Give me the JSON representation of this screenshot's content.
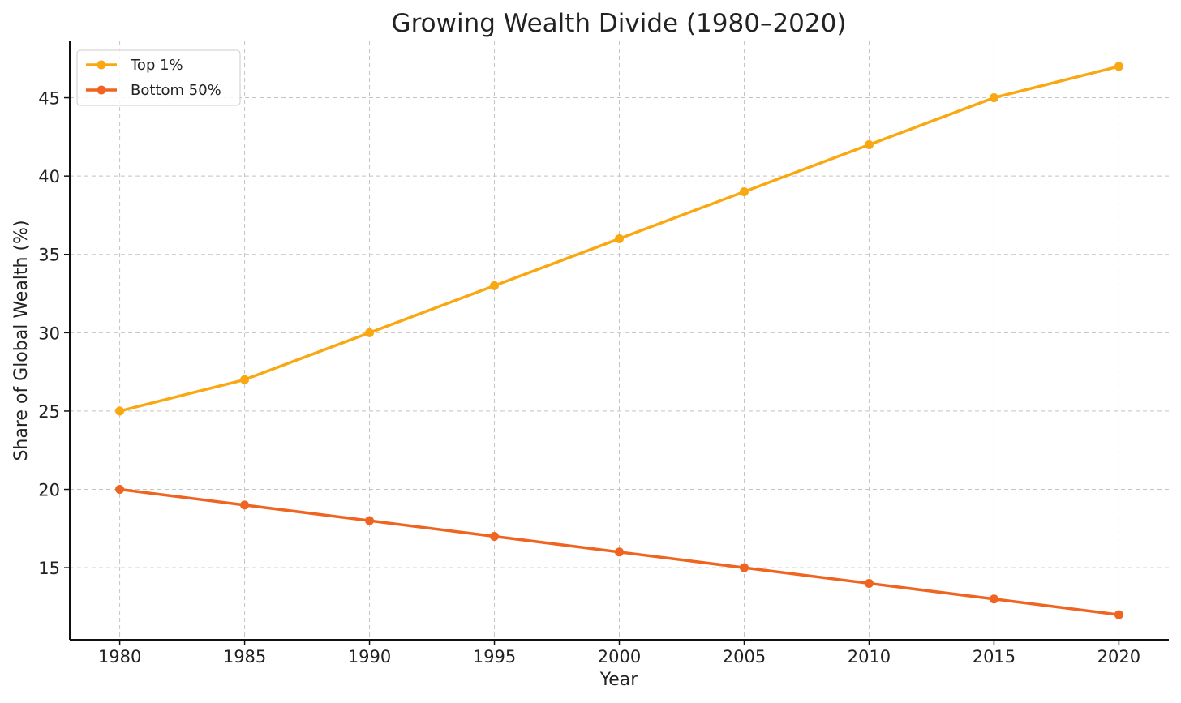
{
  "chart_data": {
    "type": "line",
    "title": "Growing Wealth Divide (1980–2020)",
    "xlabel": "Year",
    "ylabel": "Share of Global Wealth (%)",
    "x": [
      1980,
      1985,
      1990,
      1995,
      2000,
      2005,
      2010,
      2015,
      2020
    ],
    "xlim": [
      1978,
      2022
    ],
    "ylim": [
      10.4,
      48.6
    ],
    "xticks": [
      1980,
      1985,
      1990,
      1995,
      2000,
      2005,
      2010,
      2015,
      2020
    ],
    "yticks": [
      15,
      20,
      25,
      30,
      35,
      40,
      45
    ],
    "grid": true,
    "legend_position": "top-left",
    "series": [
      {
        "name": "Top 1%",
        "color": "#F9A811",
        "marker": "circle",
        "values": [
          25,
          27,
          30,
          33,
          36,
          39,
          42,
          45,
          47
        ]
      },
      {
        "name": "Bottom 50%",
        "color": "#EE6420",
        "marker": "circle",
        "values": [
          20,
          19,
          18,
          17,
          16,
          15,
          14,
          13,
          12
        ]
      }
    ]
  }
}
